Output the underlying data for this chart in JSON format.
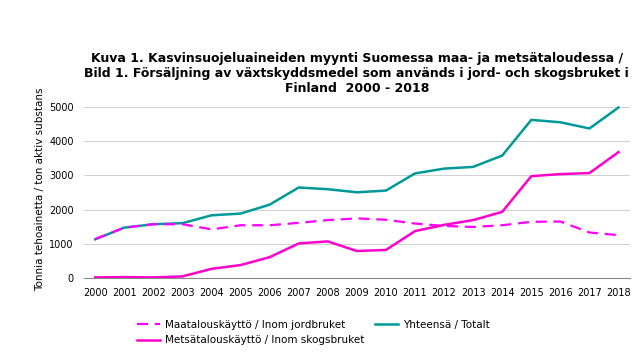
{
  "title": "Kuva 1. Kasvinsuojeluaineiden myynti Suomessa maa- ja metsätaloudessa /\nBild 1. Försäljning av växtskyddsmedel som används i jord- och skogsbruket i\nFinland  2000 - 2018",
  "ylabel": "Tonnia tehoainetta / ton aktiv substans",
  "years": [
    2000,
    2001,
    2002,
    2003,
    2004,
    2005,
    2006,
    2007,
    2008,
    2009,
    2010,
    2011,
    2012,
    2013,
    2014,
    2015,
    2016,
    2017,
    2018
  ],
  "maatalous": [
    1150,
    1480,
    1580,
    1580,
    1430,
    1550,
    1550,
    1620,
    1700,
    1750,
    1710,
    1600,
    1530,
    1500,
    1550,
    1650,
    1660,
    1340,
    1260
  ],
  "metsatalous": [
    30,
    40,
    30,
    60,
    280,
    390,
    620,
    1020,
    1080,
    800,
    830,
    1380,
    1560,
    1700,
    1940,
    2980,
    3040,
    3070,
    3680
  ],
  "yhteensa": [
    1140,
    1480,
    1580,
    1610,
    1840,
    1890,
    2150,
    2650,
    2600,
    2510,
    2560,
    3060,
    3200,
    3250,
    3580,
    4620,
    4550,
    4370,
    4980
  ],
  "maatalous_color": "#FF00FF",
  "metsatalous_color": "#FF00CC",
  "yhteensa_color": "#009999",
  "background_color": "#FFFFFF",
  "ylim": [
    0,
    5200
  ],
  "yticks": [
    0,
    1000,
    2000,
    3000,
    4000,
    5000
  ],
  "legend_maatalous": "Maatalouskäyttö / Inom jordbruket",
  "legend_metsatalous": "Metsätalouskäyttö / Inom skogsbruket",
  "legend_yhteensa": "Yhteensä / Totalt",
  "title_fontsize": 9,
  "axis_fontsize": 7.5,
  "legend_fontsize": 7.5,
  "tick_fontsize": 7
}
